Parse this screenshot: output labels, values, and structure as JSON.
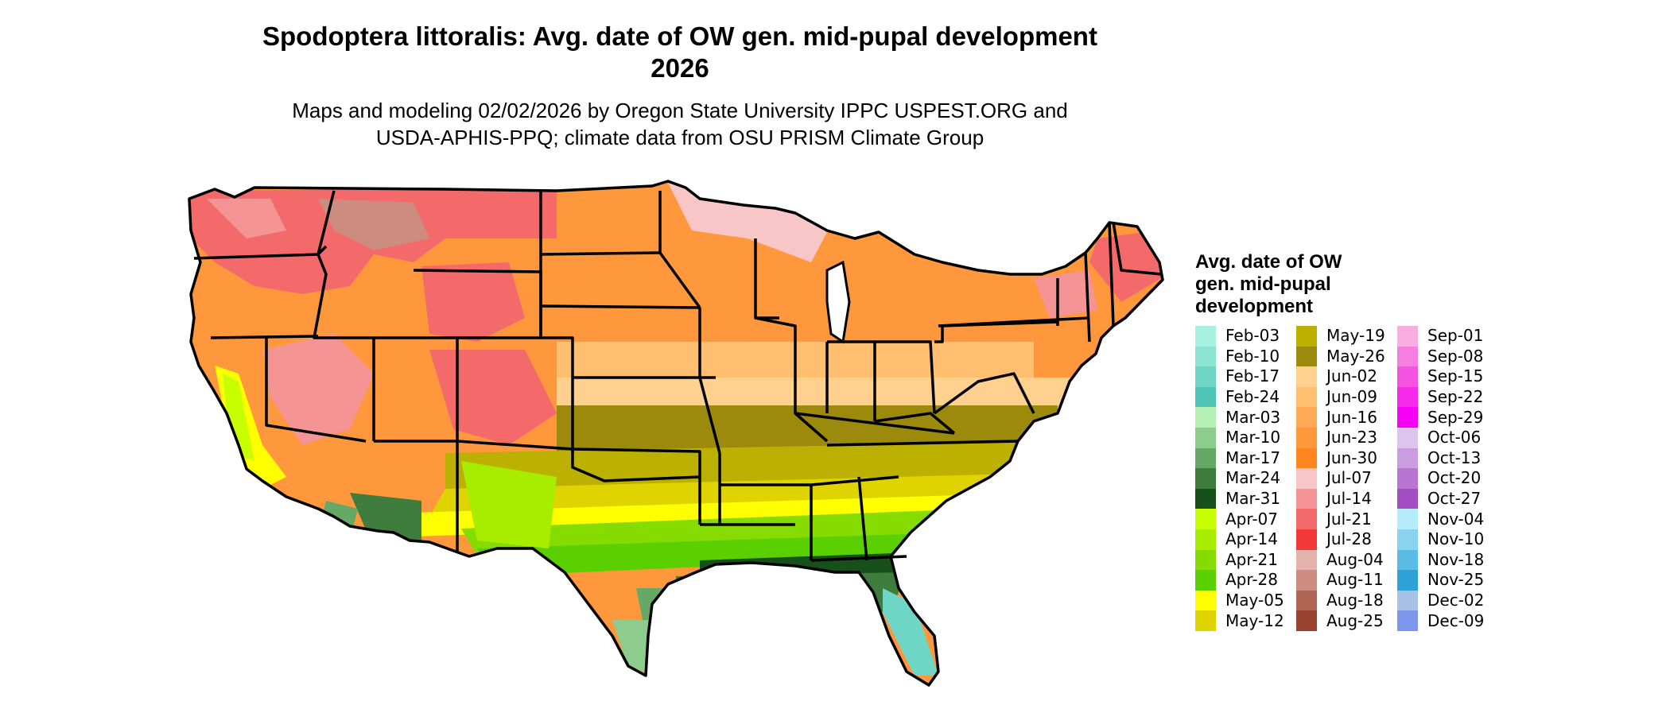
{
  "title": {
    "line1": "Spodoptera littoralis: Avg. date of OW gen. mid-pupal development",
    "line2": "2026"
  },
  "subtitle": {
    "line1": "Maps and modeling 02/02/2026 by Oregon State University IPPC USPEST.ORG and",
    "line2": "USDA-APHIS-PPQ; climate data from OSU PRISM Climate Group"
  },
  "legend": {
    "title_line1": "Avg. date of OW",
    "title_line2": "gen. mid-pupal",
    "title_line3": "development",
    "columns": [
      [
        {
          "label": "Feb-03",
          "color": "#a8f0e0"
        },
        {
          "label": "Feb-10",
          "color": "#8ee4d2"
        },
        {
          "label": "Feb-17",
          "color": "#6fd6c6"
        },
        {
          "label": "Feb-24",
          "color": "#4ec4b6"
        },
        {
          "label": "Mar-03",
          "color": "#b4f0b4"
        },
        {
          "label": "Mar-10",
          "color": "#8ccc8c"
        },
        {
          "label": "Mar-17",
          "color": "#66a866"
        },
        {
          "label": "Mar-24",
          "color": "#3e7d3e"
        },
        {
          "label": "Mar-31",
          "color": "#17501a"
        },
        {
          "label": "Apr-07",
          "color": "#c8ff00"
        },
        {
          "label": "Apr-14",
          "color": "#a8ec00"
        },
        {
          "label": "Apr-21",
          "color": "#86dc00"
        },
        {
          "label": "Apr-28",
          "color": "#5ad000"
        },
        {
          "label": "May-05",
          "color": "#ffff00"
        },
        {
          "label": "May-12",
          "color": "#e0d400"
        }
      ],
      [
        {
          "label": "May-19",
          "color": "#bcb000"
        },
        {
          "label": "May-26",
          "color": "#9c8a0c"
        },
        {
          "label": "Jun-02",
          "color": "#ffd08e"
        },
        {
          "label": "Jun-09",
          "color": "#ffbe70"
        },
        {
          "label": "Jun-16",
          "color": "#ffaa56"
        },
        {
          "label": "Jun-23",
          "color": "#ff983c"
        },
        {
          "label": "Jun-30",
          "color": "#ff861e"
        },
        {
          "label": "Jul-07",
          "color": "#f8c6c6"
        },
        {
          "label": "Jul-14",
          "color": "#f49494"
        },
        {
          "label": "Jul-21",
          "color": "#f46a6a"
        },
        {
          "label": "Jul-28",
          "color": "#f23a3a"
        },
        {
          "label": "Aug-04",
          "color": "#e4b4ac"
        },
        {
          "label": "Aug-11",
          "color": "#cc8c80"
        },
        {
          "label": "Aug-18",
          "color": "#b06452"
        },
        {
          "label": "Aug-25",
          "color": "#9a4230"
        }
      ],
      [
        {
          "label": "Sep-01",
          "color": "#f8aee0"
        },
        {
          "label": "Sep-08",
          "color": "#f67ee0"
        },
        {
          "label": "Sep-15",
          "color": "#f652e4"
        },
        {
          "label": "Sep-22",
          "color": "#f628ea"
        },
        {
          "label": "Sep-29",
          "color": "#f600f6"
        },
        {
          "label": "Oct-06",
          "color": "#dcc4ec"
        },
        {
          "label": "Oct-13",
          "color": "#cc9ce0"
        },
        {
          "label": "Oct-20",
          "color": "#ba74d2"
        },
        {
          "label": "Oct-27",
          "color": "#a24ec2"
        },
        {
          "label": "Nov-04",
          "color": "#b4ecfa"
        },
        {
          "label": "Nov-10",
          "color": "#88d4f0"
        },
        {
          "label": "Nov-18",
          "color": "#5abce4"
        },
        {
          "label": "Nov-25",
          "color": "#2ea2d6"
        },
        {
          "label": "Dec-02",
          "color": "#a8c2e6"
        },
        {
          "label": "Dec-09",
          "color": "#7e96ec"
        }
      ]
    ]
  }
}
